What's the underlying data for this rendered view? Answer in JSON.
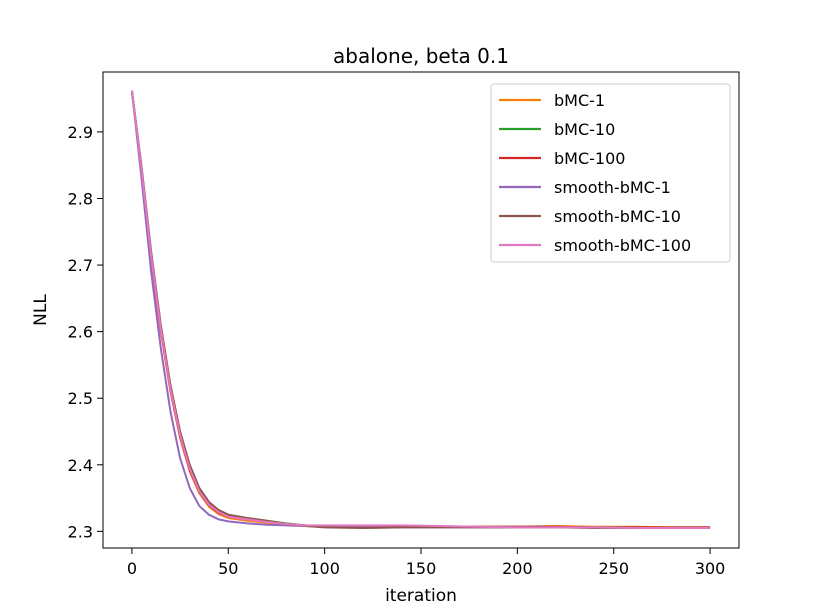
{
  "chart_data": {
    "type": "line",
    "title": "abalone, beta 0.1",
    "xlabel": "iteration",
    "ylabel": "NLL",
    "xlim": [
      -15,
      315
    ],
    "ylim": [
      2.275,
      2.99
    ],
    "xticks": [
      0,
      50,
      100,
      150,
      200,
      250,
      300
    ],
    "xtick_labels": [
      "0",
      "50",
      "100",
      "150",
      "200",
      "250",
      "300"
    ],
    "yticks": [
      2.3,
      2.4,
      2.5,
      2.6,
      2.7,
      2.8,
      2.9
    ],
    "ytick_labels": [
      "2.3",
      "2.4",
      "2.5",
      "2.6",
      "2.7",
      "2.8",
      "2.9"
    ],
    "grid": false,
    "legend_position": "top-right",
    "x": [
      0,
      5,
      10,
      15,
      20,
      25,
      30,
      35,
      40,
      45,
      50,
      60,
      70,
      80,
      90,
      100,
      120,
      140,
      160,
      180,
      200,
      220,
      240,
      260,
      280,
      300
    ],
    "series": [
      {
        "name": "bMC-1",
        "color": "#ff7f0e",
        "values": [
          2.962,
          2.84,
          2.71,
          2.6,
          2.51,
          2.44,
          2.39,
          2.357,
          2.337,
          2.326,
          2.32,
          2.316,
          2.313,
          2.311,
          2.309,
          2.308,
          2.308,
          2.308,
          2.307,
          2.307,
          2.307,
          2.308,
          2.307,
          2.307,
          2.306,
          2.306
        ]
      },
      {
        "name": "bMC-10",
        "color": "#2ca02c",
        "values": [
          2.962,
          2.845,
          2.715,
          2.605,
          2.515,
          2.445,
          2.395,
          2.362,
          2.342,
          2.33,
          2.323,
          2.319,
          2.316,
          2.312,
          2.309,
          2.308,
          2.307,
          2.307,
          2.307,
          2.307,
          2.307,
          2.307,
          2.306,
          2.306,
          2.306,
          2.306
        ]
      },
      {
        "name": "bMC-100",
        "color": "#d62728",
        "values": [
          2.962,
          2.842,
          2.712,
          2.602,
          2.512,
          2.442,
          2.392,
          2.359,
          2.339,
          2.328,
          2.322,
          2.318,
          2.315,
          2.311,
          2.309,
          2.308,
          2.307,
          2.307,
          2.307,
          2.307,
          2.307,
          2.307,
          2.306,
          2.306,
          2.306,
          2.306
        ]
      },
      {
        "name": "smooth-bMC-1",
        "color": "#9467bd",
        "values": [
          2.962,
          2.83,
          2.69,
          2.575,
          2.48,
          2.41,
          2.365,
          2.338,
          2.325,
          2.318,
          2.315,
          2.312,
          2.31,
          2.309,
          2.308,
          2.307,
          2.306,
          2.306,
          2.306,
          2.306,
          2.306,
          2.306,
          2.306,
          2.305,
          2.305,
          2.305
        ]
      },
      {
        "name": "smooth-bMC-10",
        "color": "#8c564b",
        "values": [
          2.962,
          2.848,
          2.72,
          2.61,
          2.52,
          2.45,
          2.4,
          2.365,
          2.344,
          2.332,
          2.325,
          2.32,
          2.316,
          2.311,
          2.308,
          2.306,
          2.305,
          2.306,
          2.306,
          2.306,
          2.306,
          2.306,
          2.305,
          2.305,
          2.305,
          2.305
        ]
      },
      {
        "name": "smooth-bMC-100",
        "color": "#e377c2",
        "values": [
          2.962,
          2.844,
          2.714,
          2.604,
          2.514,
          2.444,
          2.394,
          2.36,
          2.34,
          2.329,
          2.322,
          2.318,
          2.314,
          2.311,
          2.309,
          2.309,
          2.309,
          2.309,
          2.308,
          2.307,
          2.306,
          2.306,
          2.306,
          2.305,
          2.305,
          2.305
        ]
      }
    ]
  }
}
